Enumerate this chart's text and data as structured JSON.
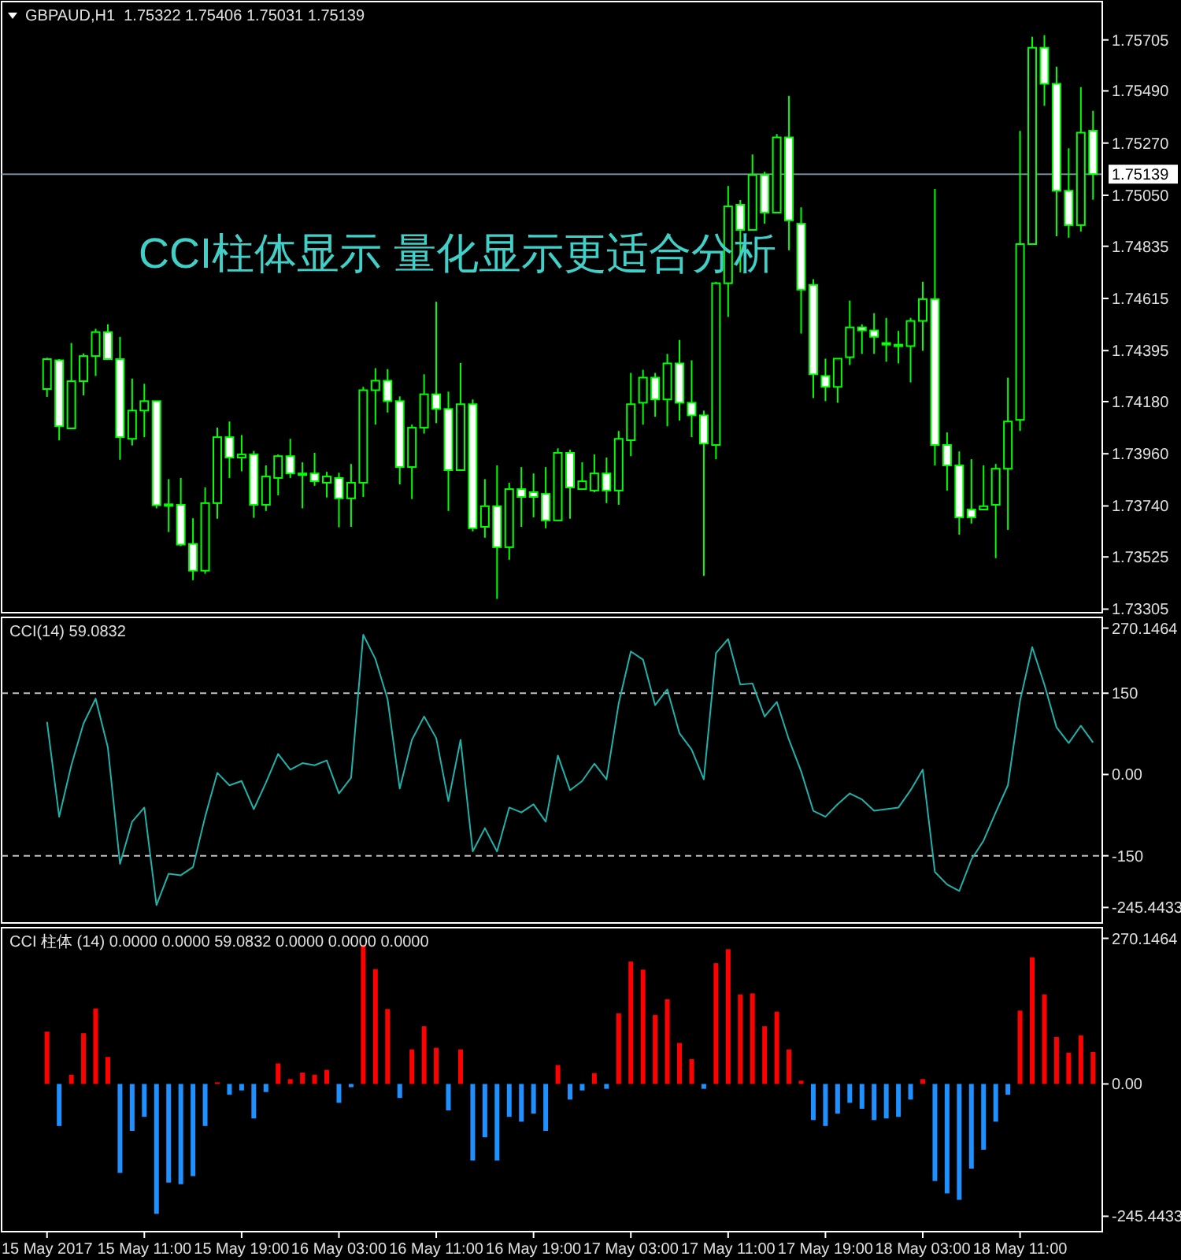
{
  "chart_data": [
    {
      "type": "candlestick",
      "title": "GBPAUD,H1  1.75322 1.75406 1.75031 1.75139",
      "annotations": [
        "CCI柱体显示 量化显示更适合分析"
      ],
      "tick_labels": "y",
      "color": "#00ff00",
      "ohlc": [
        [
          1.74233,
          1.74365,
          1.742,
          1.74359
        ],
        [
          1.74354,
          1.74359,
          1.74017,
          1.74076
        ],
        [
          1.74067,
          1.74427,
          1.74067,
          1.74266
        ],
        [
          1.74266,
          1.74383,
          1.74206,
          1.74372
        ],
        [
          1.74372,
          1.74487,
          1.74288,
          1.74473
        ],
        [
          1.74473,
          1.74506,
          1.74359,
          1.74359
        ],
        [
          1.74359,
          1.74453,
          1.73935,
          1.7403
        ],
        [
          1.74023,
          1.74277,
          1.73995,
          1.74142
        ],
        [
          1.74142,
          1.74255,
          1.7403,
          1.74182
        ],
        [
          1.74182,
          1.74182,
          1.7373,
          1.73743
        ],
        [
          1.73747,
          1.73853,
          1.7363,
          1.73745
        ],
        [
          1.73745,
          1.73858,
          1.73571,
          1.73577
        ],
        [
          1.7358,
          1.73688,
          1.73427,
          1.73467
        ],
        [
          1.73467,
          1.73818,
          1.73454,
          1.73752
        ],
        [
          1.73752,
          1.7407,
          1.73686,
          1.7403
        ],
        [
          1.7403,
          1.74096,
          1.73858,
          1.73944
        ],
        [
          1.73944,
          1.74039,
          1.73886,
          1.73957
        ],
        [
          1.73957,
          1.73972,
          1.7369,
          1.73745
        ],
        [
          1.73745,
          1.73911,
          1.73719,
          1.73864
        ],
        [
          1.73858,
          1.73957,
          1.73785,
          1.7395
        ],
        [
          1.7395,
          1.74023,
          1.73858,
          1.73877
        ],
        [
          1.73877,
          1.73924,
          1.7373,
          1.73877
        ],
        [
          1.73877,
          1.73964,
          1.73825,
          1.73844
        ],
        [
          1.73838,
          1.73884,
          1.73776,
          1.73864
        ],
        [
          1.73858,
          1.7388,
          1.7365,
          1.73772
        ],
        [
          1.73772,
          1.73917,
          1.73652,
          1.73838
        ],
        [
          1.73838,
          1.74242,
          1.73778,
          1.74228
        ],
        [
          1.74228,
          1.74321,
          1.74083,
          1.74268
        ],
        [
          1.74268,
          1.74317,
          1.74134,
          1.74182
        ],
        [
          1.74182,
          1.74202,
          1.73831,
          1.73904
        ],
        [
          1.73904,
          1.74083,
          1.73769,
          1.7407
        ],
        [
          1.7407,
          1.74295,
          1.74045,
          1.74211
        ],
        [
          1.74211,
          1.74601,
          1.74089,
          1.74149
        ],
        [
          1.74149,
          1.74222,
          1.73719,
          1.73891
        ],
        [
          1.73891,
          1.74343,
          1.73891,
          1.74169
        ],
        [
          1.74169,
          1.74189,
          1.73633,
          1.73646
        ],
        [
          1.73652,
          1.73853,
          1.73606,
          1.73739
        ],
        [
          1.73739,
          1.73911,
          1.73348,
          1.73566
        ],
        [
          1.73566,
          1.73838,
          1.73513,
          1.73811
        ],
        [
          1.73811,
          1.73904,
          1.73652,
          1.73778
        ],
        [
          1.73798,
          1.73877,
          1.73692,
          1.73778
        ],
        [
          1.73791,
          1.73904,
          1.73646,
          1.73679
        ],
        [
          1.73679,
          1.73983,
          1.73679,
          1.73964
        ],
        [
          1.73964,
          1.73977,
          1.73686,
          1.73818
        ],
        [
          1.73811,
          1.73924,
          1.73811,
          1.73844
        ],
        [
          1.73805,
          1.73957,
          1.73798,
          1.73877
        ],
        [
          1.73877,
          1.73944,
          1.73752,
          1.73805
        ],
        [
          1.73805,
          1.74056,
          1.73745,
          1.74023
        ],
        [
          1.74017,
          1.74301,
          1.7395,
          1.74169
        ],
        [
          1.74175,
          1.74314,
          1.74083,
          1.74281
        ],
        [
          1.74281,
          1.74301,
          1.74116,
          1.74189
        ],
        [
          1.74189,
          1.74381,
          1.74076,
          1.74341
        ],
        [
          1.74341,
          1.7444,
          1.741,
          1.74175
        ],
        [
          1.74175,
          1.74354,
          1.7403,
          1.74122
        ],
        [
          1.74122,
          1.74142,
          1.73445,
          1.74003
        ],
        [
          1.73997,
          1.74685,
          1.73937,
          1.74679
        ],
        [
          1.74679,
          1.75089,
          1.74537,
          1.75003
        ],
        [
          1.7501,
          1.7503,
          1.74725,
          1.74904
        ],
        [
          1.74904,
          1.75222,
          1.74904,
          1.75136
        ],
        [
          1.75136,
          1.75149,
          1.7493,
          1.74977
        ],
        [
          1.74977,
          1.75308,
          1.74977,
          1.75294
        ],
        [
          1.75294,
          1.75469,
          1.74818,
          1.74944
        ],
        [
          1.7493,
          1.74999,
          1.74467,
          1.74652
        ],
        [
          1.74672,
          1.74696,
          1.74195,
          1.74295
        ],
        [
          1.74288,
          1.74361,
          1.74182,
          1.74242
        ],
        [
          1.74242,
          1.74361,
          1.74175,
          1.74361
        ],
        [
          1.74367,
          1.74606,
          1.74334,
          1.74493
        ],
        [
          1.74493,
          1.74506,
          1.74381,
          1.7448
        ],
        [
          1.7448,
          1.74553,
          1.74381,
          1.74453
        ],
        [
          1.74427,
          1.74533,
          1.74348,
          1.7442
        ],
        [
          1.7442,
          1.74478,
          1.74341,
          1.74414
        ],
        [
          1.74414,
          1.74533,
          1.74261,
          1.7452
        ],
        [
          1.7452,
          1.74685,
          1.74394,
          1.74612
        ],
        [
          1.74612,
          1.75076,
          1.73911,
          1.73997
        ],
        [
          1.73997,
          1.7405,
          1.73805,
          1.73911
        ],
        [
          1.73911,
          1.7397,
          1.73619,
          1.73692
        ],
        [
          1.73725,
          1.73937,
          1.73666,
          1.73692
        ],
        [
          1.73725,
          1.73911,
          1.73725,
          1.73739
        ],
        [
          1.73745,
          1.73917,
          1.7352,
          1.73897
        ],
        [
          1.73897,
          1.74281,
          1.73639,
          1.74096
        ],
        [
          1.74103,
          1.75321,
          1.74056,
          1.74844
        ],
        [
          1.74844,
          1.75718,
          1.74844,
          1.75672
        ],
        [
          1.75672,
          1.75725,
          1.75427,
          1.7552
        ],
        [
          1.7552,
          1.75592,
          1.74877,
          1.75069
        ],
        [
          1.75069,
          1.75248,
          1.74871,
          1.74924
        ],
        [
          1.74924,
          1.75506,
          1.74897,
          1.75314
        ],
        [
          1.75322,
          1.75406,
          1.75031,
          1.75139
        ]
      ],
      "ylim": [
        1.7329,
        1.7586
      ],
      "yticks": [
        {
          "value": 1.75705,
          "label": "1.75705"
        },
        {
          "value": 1.7549,
          "label": "1.75490"
        },
        {
          "value": 1.7527,
          "label": "1.75270"
        },
        {
          "value": 1.7505,
          "label": "1.75050"
        },
        {
          "value": 1.74835,
          "label": "1.74835"
        },
        {
          "value": 1.74615,
          "label": "1.74615"
        },
        {
          "value": 1.74395,
          "label": "1.74395"
        },
        {
          "value": 1.7418,
          "label": "1.74180"
        },
        {
          "value": 1.7396,
          "label": "1.73960"
        },
        {
          "value": 1.7374,
          "label": "1.73740"
        },
        {
          "value": 1.73525,
          "label": "1.73525"
        },
        {
          "value": 1.73305,
          "label": "1.73305"
        }
      ],
      "ref_lines": [
        {
          "axis": "y",
          "value": 1.75139,
          "label": "1.75139",
          "color": "#778899"
        }
      ]
    },
    {
      "type": "line",
      "title": "CCI(14) 59.0832",
      "tick_labels": "y",
      "color": "#20b2aa",
      "values": [
        97,
        -78,
        17,
        94,
        140,
        50,
        -165,
        -87,
        -61,
        -241,
        -183,
        -186,
        -171,
        -78,
        3,
        -20,
        -12,
        -64,
        -15,
        38,
        9,
        21,
        17,
        26,
        -35,
        -6,
        258,
        213,
        139,
        -26,
        64,
        107,
        67,
        -49,
        64,
        -142,
        -99,
        -142,
        -61,
        -70,
        -55,
        -87,
        35,
        -29,
        -12,
        20,
        -9,
        131,
        227,
        212,
        128,
        157,
        76,
        46,
        -9,
        224,
        250,
        166,
        168,
        107,
        134,
        64,
        6,
        -67,
        -78,
        -55,
        -35,
        -46,
        -67,
        -64,
        -61,
        -29,
        9,
        -180,
        -203,
        -215,
        -157,
        -122,
        -70,
        -20,
        136,
        235,
        166,
        87,
        58,
        90,
        59.0832
      ],
      "ylim": [
        -274,
        287
      ],
      "yticks": [
        270.1464,
        150,
        {
          "value": 0,
          "label": "0.00"
        },
        -150,
        -245.4433
      ],
      "ref_lines": [
        {
          "axis": "y",
          "value": 150,
          "color": "#c0c0c0",
          "line_style": "dashed"
        },
        {
          "axis": "y",
          "value": -150,
          "color": "#c0c0c0",
          "line_style": "dashed"
        }
      ]
    },
    {
      "type": "bar",
      "title": "CCI 柱体 (14) 0.0000 0.0000 59.0832 0.0000 0.0000 0.0000",
      "categories": [
        "15 May 2017",
        null,
        null,
        null,
        null,
        null,
        null,
        null,
        "15 May 11:00",
        null,
        null,
        null,
        null,
        null,
        null,
        null,
        "15 May 19:00",
        null,
        null,
        null,
        null,
        null,
        null,
        null,
        "16 May 03:00",
        null,
        null,
        null,
        null,
        null,
        null,
        null,
        "16 May 11:00",
        null,
        null,
        null,
        null,
        null,
        null,
        null,
        "16 May 19:00",
        null,
        null,
        null,
        null,
        null,
        null,
        null,
        "17 May 03:00",
        null,
        null,
        null,
        null,
        null,
        null,
        null,
        "17 May 11:00",
        null,
        null,
        null,
        null,
        null,
        null,
        null,
        "17 May 19:00",
        null,
        null,
        null,
        null,
        null,
        null,
        null,
        "18 May 03:00",
        null,
        null,
        null,
        null,
        null,
        null,
        null,
        "18 May 11:00",
        null,
        null,
        null,
        null,
        null,
        null
      ],
      "values": [
        97,
        -78,
        17,
        94,
        140,
        50,
        -165,
        -87,
        -61,
        -241,
        -183,
        -186,
        -171,
        -78,
        3,
        -20,
        -12,
        -64,
        -15,
        38,
        9,
        21,
        17,
        26,
        -35,
        -6,
        258,
        213,
        139,
        -26,
        64,
        107,
        67,
        -49,
        64,
        -142,
        -99,
        -142,
        -61,
        -70,
        -55,
        -87,
        35,
        -29,
        -12,
        20,
        -9,
        131,
        227,
        212,
        128,
        157,
        76,
        46,
        -9,
        224,
        250,
        166,
        168,
        107,
        134,
        64,
        6,
        -67,
        -78,
        -55,
        -35,
        -46,
        -67,
        -64,
        -61,
        -29,
        9,
        -180,
        -203,
        -215,
        -157,
        -122,
        -70,
        -20,
        136,
        235,
        166,
        87,
        58,
        90,
        59.0832
      ],
      "colors": [
        "#ff0000",
        "#1e90ff",
        "#ff0000",
        "#ff0000",
        "#ff0000",
        "#ff0000",
        "#1e90ff",
        "#1e90ff",
        "#1e90ff",
        "#1e90ff",
        "#1e90ff",
        "#1e90ff",
        "#1e90ff",
        "#1e90ff",
        "#ff0000",
        "#1e90ff",
        "#1e90ff",
        "#1e90ff",
        "#1e90ff",
        "#ff0000",
        "#ff0000",
        "#ff0000",
        "#ff0000",
        "#ff0000",
        "#1e90ff",
        "#1e90ff",
        "#ff0000",
        "#ff0000",
        "#ff0000",
        "#1e90ff",
        "#ff0000",
        "#ff0000",
        "#ff0000",
        "#1e90ff",
        "#ff0000",
        "#1e90ff",
        "#1e90ff",
        "#1e90ff",
        "#1e90ff",
        "#1e90ff",
        "#1e90ff",
        "#1e90ff",
        "#ff0000",
        "#1e90ff",
        "#1e90ff",
        "#ff0000",
        "#1e90ff",
        "#ff0000",
        "#ff0000",
        "#ff0000",
        "#ff0000",
        "#ff0000",
        "#ff0000",
        "#ff0000",
        "#1e90ff",
        "#ff0000",
        "#ff0000",
        "#ff0000",
        "#ff0000",
        "#ff0000",
        "#ff0000",
        "#ff0000",
        "#ff0000",
        "#1e90ff",
        "#1e90ff",
        "#1e90ff",
        "#1e90ff",
        "#1e90ff",
        "#1e90ff",
        "#1e90ff",
        "#1e90ff",
        "#1e90ff",
        "#ff0000",
        "#1e90ff",
        "#1e90ff",
        "#1e90ff",
        "#1e90ff",
        "#1e90ff",
        "#1e90ff",
        "#1e90ff",
        "#ff0000",
        "#ff0000",
        "#ff0000",
        "#ff0000",
        "#ff0000",
        "#ff0000",
        "#ff0000"
      ],
      "ylim": [
        -274,
        287
      ],
      "yticks": [
        270.1464,
        {
          "value": 0,
          "label": "0.00"
        },
        -245.4433
      ]
    }
  ]
}
